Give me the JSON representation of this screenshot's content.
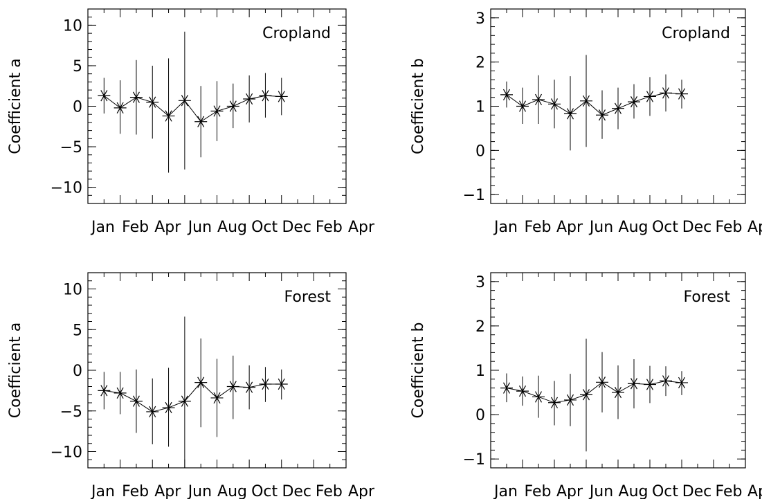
{
  "chart_data": [
    {
      "type": "scatter",
      "title": "",
      "annotation": "Cropland",
      "xlabel": "",
      "ylabel": "Coefficient  a",
      "xticks": [
        "Jan",
        "Feb",
        "Apr",
        "Jun",
        "Aug",
        "Oct",
        "Dec",
        "Feb",
        "Apr"
      ],
      "yticks": [
        "10",
        "5",
        "0",
        "−5",
        "−10"
      ],
      "ytick_values": [
        10,
        5,
        0,
        -5,
        -10
      ],
      "ylim": [
        -12,
        12
      ],
      "x_month_index_range": [
        0,
        16
      ],
      "series": [
        {
          "x_month_index": [
            1,
            2,
            3,
            4,
            5,
            6,
            7,
            8,
            9,
            10,
            11,
            12
          ],
          "values": [
            1.3,
            -0.2,
            1.1,
            0.5,
            -1.2,
            0.7,
            -1.9,
            -0.6,
            0.0,
            0.9,
            1.3,
            1.2
          ],
          "err_low": [
            -0.9,
            -3.4,
            -3.5,
            -4.0,
            -8.2,
            -7.8,
            -6.3,
            -4.3,
            -2.7,
            -2.0,
            -1.4,
            -1.1
          ],
          "err_high": [
            3.5,
            3.2,
            5.7,
            5.0,
            5.9,
            9.2,
            2.5,
            3.1,
            2.8,
            3.8,
            4.1,
            3.5
          ]
        }
      ],
      "grid": false,
      "legend": "none"
    },
    {
      "type": "scatter",
      "title": "",
      "annotation": "Cropland",
      "xlabel": "",
      "ylabel": "Coefficient  b",
      "xticks": [
        "Jan",
        "Feb",
        "Apr",
        "Jun",
        "Aug",
        "Oct",
        "Dec",
        "Feb",
        "Apr"
      ],
      "yticks": [
        "3",
        "2",
        "1",
        "0",
        "−1"
      ],
      "ytick_values": [
        3,
        2,
        1,
        0,
        -1
      ],
      "ylim": [
        -1.2,
        3.2
      ],
      "x_month_index_range": [
        0,
        16
      ],
      "series": [
        {
          "x_month_index": [
            1,
            2,
            3,
            4,
            5,
            6,
            7,
            8,
            9,
            10,
            11,
            12
          ],
          "values": [
            1.26,
            1.0,
            1.15,
            1.05,
            0.83,
            1.12,
            0.8,
            0.95,
            1.1,
            1.22,
            1.3,
            1.28
          ],
          "err_low": [
            0.97,
            0.6,
            0.6,
            0.5,
            0.0,
            0.08,
            0.26,
            0.48,
            0.72,
            0.78,
            0.88,
            0.95
          ],
          "err_high": [
            1.56,
            1.42,
            1.7,
            1.6,
            1.68,
            2.16,
            1.36,
            1.42,
            1.5,
            1.66,
            1.72,
            1.6
          ]
        }
      ],
      "grid": false,
      "legend": "none"
    },
    {
      "type": "scatter",
      "title": "",
      "annotation": "Forest",
      "xlabel": "",
      "ylabel": "Coefficient  a",
      "xticks": [
        "Jan",
        "Feb",
        "Apr",
        "Jun",
        "Aug",
        "Oct",
        "Dec",
        "Feb",
        "Apr"
      ],
      "yticks": [
        "10",
        "5",
        "0",
        "−5",
        "−10"
      ],
      "ytick_values": [
        10,
        5,
        0,
        -5,
        -10
      ],
      "ylim": [
        -12,
        12
      ],
      "x_month_index_range": [
        0,
        16
      ],
      "series": [
        {
          "x_month_index": [
            1,
            2,
            3,
            4,
            5,
            6,
            7,
            8,
            9,
            10,
            11,
            12
          ],
          "values": [
            -2.5,
            -2.8,
            -3.8,
            -5.1,
            -4.6,
            -3.8,
            -1.5,
            -3.4,
            -2.0,
            -2.1,
            -1.7,
            -1.7
          ],
          "err_low": [
            -4.8,
            -5.4,
            -7.7,
            -9.1,
            -9.4,
            -12.0,
            -7.0,
            -8.2,
            -6.0,
            -4.8,
            -3.9,
            -3.6
          ],
          "err_high": [
            -0.2,
            -0.2,
            0.1,
            -1.0,
            0.3,
            6.6,
            3.9,
            1.4,
            1.8,
            0.6,
            0.4,
            0.1
          ]
        }
      ],
      "grid": false,
      "legend": "none"
    },
    {
      "type": "scatter",
      "title": "",
      "annotation": "Forest",
      "xlabel": "",
      "ylabel": "Coefficient  b",
      "xticks": [
        "Jan",
        "Feb",
        "Apr",
        "Jun",
        "Aug",
        "Oct",
        "Dec",
        "Feb",
        "Apr"
      ],
      "yticks": [
        "3",
        "2",
        "1",
        "0",
        "−1"
      ],
      "ytick_values": [
        3,
        2,
        1,
        0,
        -1
      ],
      "ylim": [
        -1.2,
        3.2
      ],
      "x_month_index_range": [
        0,
        16
      ],
      "series": [
        {
          "x_month_index": [
            1,
            2,
            3,
            4,
            5,
            6,
            7,
            8,
            9,
            10,
            11,
            12
          ],
          "values": [
            0.6,
            0.53,
            0.4,
            0.27,
            0.33,
            0.45,
            0.73,
            0.5,
            0.7,
            0.68,
            0.76,
            0.72
          ],
          "err_low": [
            0.28,
            0.2,
            -0.07,
            -0.24,
            -0.26,
            -0.83,
            0.05,
            -0.1,
            0.14,
            0.26,
            0.42,
            0.44
          ],
          "err_high": [
            0.93,
            0.86,
            0.88,
            0.76,
            0.92,
            1.71,
            1.41,
            1.11,
            1.25,
            1.1,
            1.09,
            0.98
          ]
        }
      ],
      "grid": false,
      "legend": "none"
    }
  ]
}
